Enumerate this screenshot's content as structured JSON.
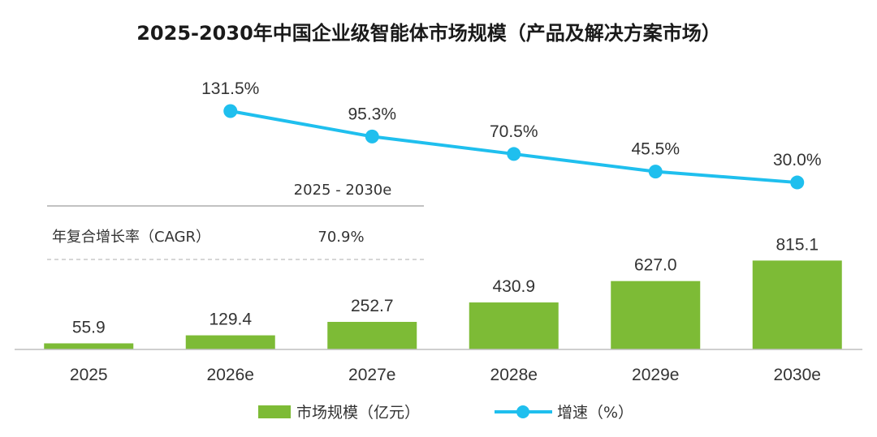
{
  "chart_data": {
    "type": "bar+line",
    "title": "2025-2030年中国企业级智能体市场规模（产品及解决方案市场）",
    "categories": [
      "2025",
      "2026e",
      "2027e",
      "2028e",
      "2029e",
      "2030e"
    ],
    "series": [
      {
        "name": "市场规模（亿元）",
        "type": "bar",
        "values": [
          55.9,
          129.4,
          252.7,
          430.9,
          627.0,
          815.1
        ],
        "labels": [
          "55.9",
          "129.4",
          "252.7",
          "430.9",
          "627.0",
          "815.1"
        ]
      },
      {
        "name": "增速（%）",
        "type": "line",
        "values": [
          null,
          131.5,
          95.3,
          70.5,
          45.5,
          30.0
        ],
        "labels": [
          "",
          "131.5%",
          "95.3%",
          "70.5%",
          "45.5%",
          "30.0%"
        ]
      }
    ],
    "cagr_table": {
      "period": "2025 - 2030e",
      "label": "年复合增长率（CAGR）",
      "value": "70.9%"
    },
    "legend_position": "bottom",
    "colors": {
      "bar": "#7dbb36",
      "line": "#1fbfee",
      "axis": "#bfbfbf",
      "table_rule": "#9e9e9e"
    }
  }
}
